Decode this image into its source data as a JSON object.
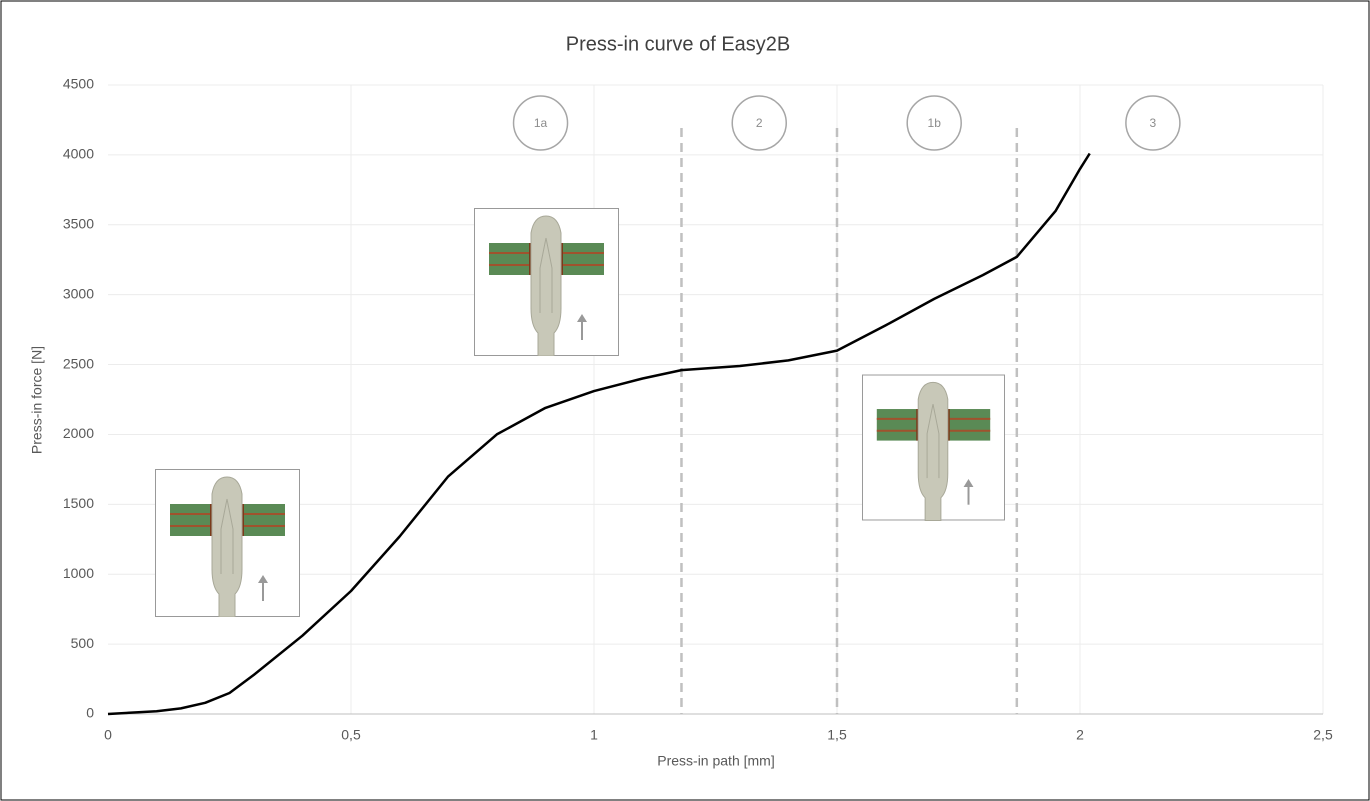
{
  "chart_data": {
    "type": "line",
    "title": "Press-in curve of Easy2B",
    "x_label": "Press-in path [mm]",
    "y_label": "Press-in force [N]",
    "color": "#000000",
    "x": [
      0,
      0.1,
      0.15,
      0.2,
      0.25,
      0.3,
      0.4,
      0.5,
      0.6,
      0.7,
      0.8,
      0.9,
      1.0,
      1.1,
      1.18,
      1.3,
      1.4,
      1.5,
      1.6,
      1.7,
      1.8,
      1.87,
      1.95,
      2.0,
      2.02
    ],
    "values": [
      0,
      20,
      40,
      80,
      150,
      280,
      560,
      880,
      1270,
      1700,
      2000,
      2190,
      2310,
      2400,
      2460,
      2490,
      2530,
      2600,
      2780,
      2970,
      3140,
      3270,
      3600,
      3900,
      4010
    ],
    "xlim": [
      0,
      2.5
    ],
    "xticks": [
      0,
      {
        "value": 0.5,
        "label": "0,5"
      },
      1,
      {
        "value": 1.5,
        "label": "1,5"
      },
      2,
      {
        "value": 2.5,
        "label": "2,5"
      }
    ],
    "ylim": [
      0,
      4500
    ],
    "yticks": [
      0,
      500,
      1000,
      1500,
      2000,
      2500,
      3000,
      3500,
      4000,
      4500
    ],
    "grid": true,
    "boundaries": [
      1.18,
      1.5,
      1.87
    ],
    "phases": [
      {
        "label": "1a",
        "x": 0.89
      },
      {
        "label": "2",
        "x": 1.34
      },
      {
        "label": "1b",
        "x": 1.7
      },
      {
        "label": "3",
        "x": 2.15
      }
    ]
  }
}
